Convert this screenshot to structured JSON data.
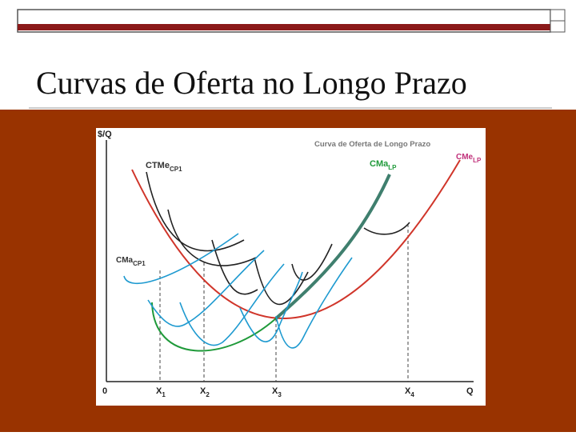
{
  "header": {
    "title": "Curvas de Oferta no Longo Prazo"
  },
  "diagram": {
    "heading": "Curva de Oferta de Longo Prazo",
    "y_axis": "$/Q",
    "x_axis": "Q",
    "origin": "0",
    "x_marks": [
      {
        "main": "X",
        "sub": "1"
      },
      {
        "main": "X",
        "sub": "2"
      },
      {
        "main": "X",
        "sub": "3"
      },
      {
        "main": "X",
        "sub": "4"
      }
    ],
    "labels": [
      {
        "main": "CTMe",
        "sub": "CP1"
      },
      {
        "main": "CMa",
        "sub": "LP"
      },
      {
        "main": "CMe",
        "sub": "LP"
      },
      {
        "main": "CMa",
        "sub": "CP1"
      }
    ]
  }
}
